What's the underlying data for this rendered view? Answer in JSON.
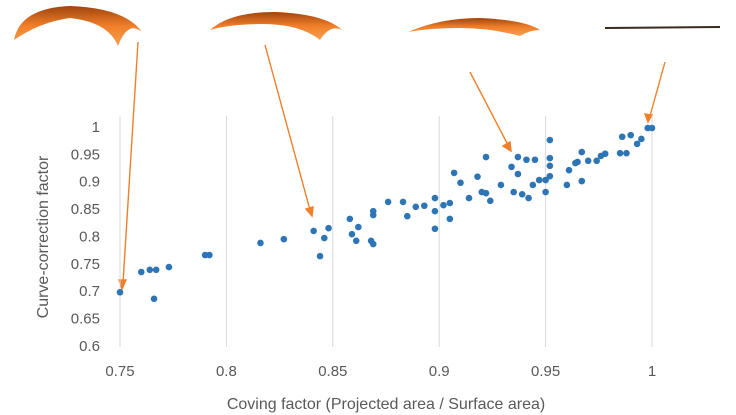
{
  "chart_data": {
    "type": "scatter",
    "x_label": "Coving factor (Projected area / Surface area)",
    "y_label": "Curve-correction factor",
    "color": "#2e75b6",
    "grid": "x",
    "xlim": [
      0.75,
      1
    ],
    "xticks": [
      0.75,
      0.8,
      0.85,
      0.9,
      0.95,
      1
    ],
    "ylim": [
      0.6,
      1
    ],
    "yticks": [
      0.6,
      0.65,
      0.7,
      0.75,
      0.8,
      0.85,
      0.9,
      0.95,
      1
    ],
    "x": [
      0.75,
      0.76,
      0.764,
      0.767,
      0.766,
      0.773,
      0.79,
      0.792,
      0.816,
      0.827,
      0.841,
      0.844,
      0.846,
      0.848,
      0.858,
      0.859,
      0.861,
      0.862,
      0.869,
      0.869,
      0.868,
      0.869,
      0.876,
      0.883,
      0.885,
      0.889,
      0.893,
      0.898,
      0.898,
      0.898,
      0.902,
      0.905,
      0.905,
      0.907,
      0.91,
      0.914,
      0.918,
      0.92,
      0.922,
      0.922,
      0.924,
      0.929,
      0.934,
      0.935,
      0.937,
      0.937,
      0.939,
      0.941,
      0.942,
      0.944,
      0.945,
      0.947,
      0.95,
      0.95,
      0.952,
      0.952,
      0.952,
      0.952,
      0.96,
      0.961,
      0.964,
      0.965,
      0.967,
      0.967,
      0.97,
      0.974,
      0.976,
      0.978,
      0.985,
      0.986,
      0.988,
      0.99,
      0.993,
      0.995,
      0.998,
      1.0
    ],
    "values": [
      0.7,
      0.737,
      0.741,
      0.741,
      0.688,
      0.746,
      0.768,
      0.768,
      0.79,
      0.797,
      0.812,
      0.766,
      0.799,
      0.817,
      0.834,
      0.806,
      0.794,
      0.819,
      0.848,
      0.841,
      0.794,
      0.788,
      0.865,
      0.865,
      0.839,
      0.856,
      0.858,
      0.816,
      0.872,
      0.848,
      0.859,
      0.834,
      0.863,
      0.918,
      0.9,
      0.872,
      0.911,
      0.883,
      0.881,
      0.947,
      0.867,
      0.896,
      0.929,
      0.883,
      0.947,
      0.916,
      0.879,
      0.942,
      0.872,
      0.896,
      0.942,
      0.905,
      0.905,
      0.883,
      0.912,
      0.945,
      0.978,
      0.931,
      0.896,
      0.923,
      0.936,
      0.938,
      0.903,
      0.956,
      0.94,
      0.94,
      0.949,
      0.953,
      0.954,
      0.984,
      0.954,
      0.987,
      0.971,
      0.98,
      1.0,
      1.0
    ]
  }
}
